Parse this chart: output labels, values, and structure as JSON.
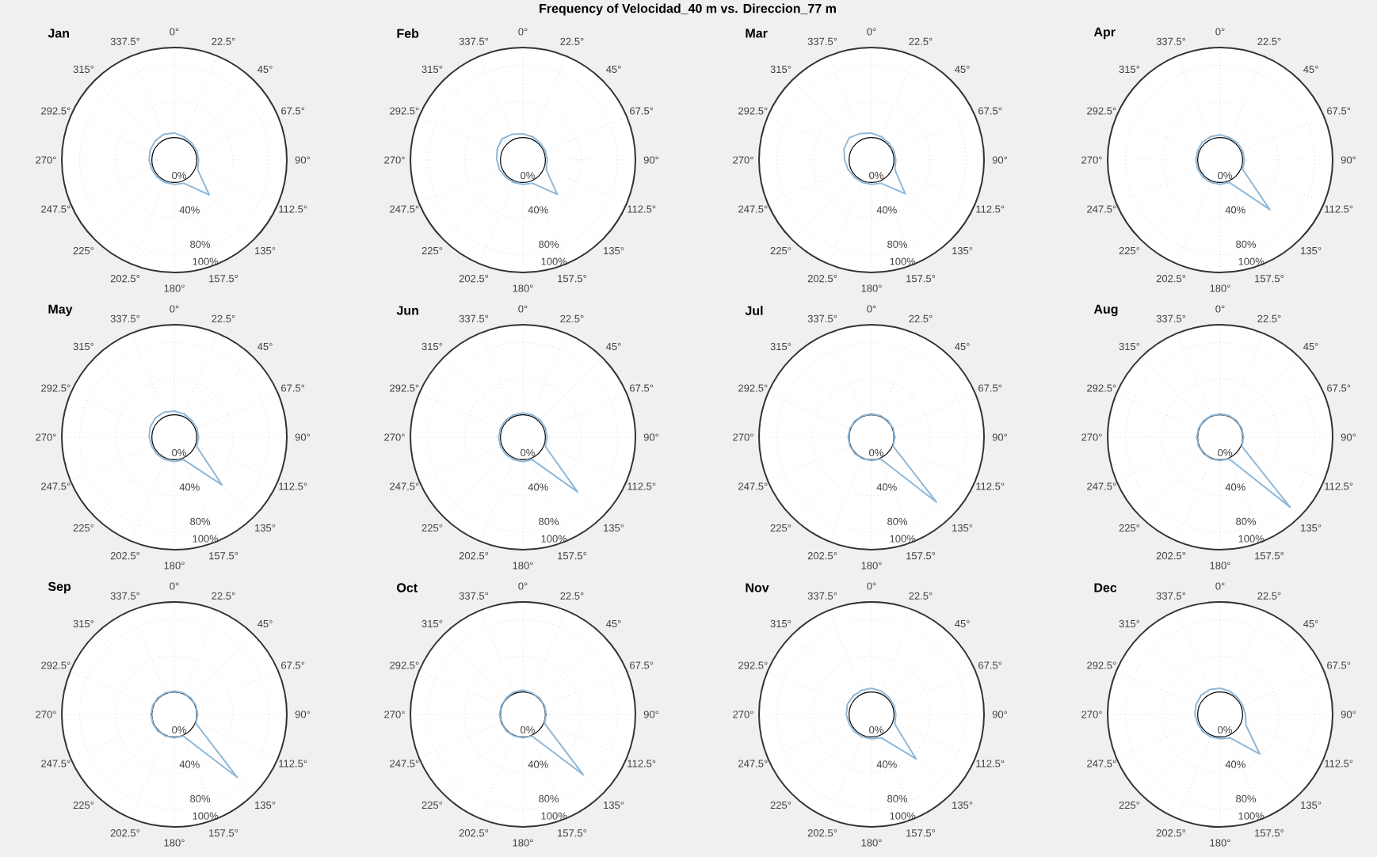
{
  "chart_data": [
    {
      "type": "radar",
      "title": "Jan",
      "annotations": [
        "Frequency of Velocidad_40 m vs. Direccion_77 m"
      ],
      "categories": [
        "0°",
        "22.5°",
        "45°",
        "67.5°",
        "90°",
        "112.5°",
        "135°",
        "157.5°",
        "180°",
        "202.5°",
        "225°",
        "247.5°",
        "270°",
        "292.5°",
        "315°",
        "337.5°"
      ],
      "series": [
        {
          "color": "#8fb8d8",
          "values": [
            5,
            3,
            2,
            2,
            2,
            3,
            30,
            3,
            2,
            2,
            2,
            2,
            3,
            4,
            5,
            6
          ]
        }
      ],
      "ylim": [
        -25,
        100
      ],
      "yticks": [
        {
          "value": 0,
          "label": "0%"
        },
        {
          "value": 40,
          "label": "40%"
        },
        {
          "value": 80,
          "label": "80%"
        },
        {
          "value": 100,
          "label": "100%"
        }
      ],
      "grid": true
    },
    {
      "type": "radar",
      "title": "Feb",
      "categories": [
        "0°",
        "22.5°",
        "45°",
        "67.5°",
        "90°",
        "112.5°",
        "135°",
        "157.5°",
        "180°",
        "202.5°",
        "225°",
        "247.5°",
        "270°",
        "292.5°",
        "315°",
        "337.5°"
      ],
      "series": [
        {
          "color": "#8fb8d8",
          "values": [
            4,
            3,
            2,
            2,
            2,
            3,
            29,
            3,
            2,
            2,
            2,
            3,
            4,
            6,
            8,
            6
          ]
        }
      ],
      "ylim": [
        -25,
        100
      ],
      "yticks": [
        {
          "value": 0,
          "label": "0%"
        },
        {
          "value": 40,
          "label": "40%"
        },
        {
          "value": 80,
          "label": "80%"
        },
        {
          "value": 100,
          "label": "100%"
        }
      ],
      "grid": true
    },
    {
      "type": "radar",
      "title": "Mar",
      "categories": [
        "0°",
        "22.5°",
        "45°",
        "67.5°",
        "90°",
        "112.5°",
        "135°",
        "157.5°",
        "180°",
        "202.5°",
        "225°",
        "247.5°",
        "270°",
        "292.5°",
        "315°",
        "337.5°"
      ],
      "series": [
        {
          "color": "#8fb8d8",
          "values": [
            5,
            3,
            2,
            2,
            2,
            3,
            28,
            3,
            2,
            2,
            2,
            3,
            5,
            8,
            10,
            7
          ]
        }
      ],
      "ylim": [
        -25,
        100
      ],
      "yticks": [
        {
          "value": 0,
          "label": "0%"
        },
        {
          "value": 40,
          "label": "40%"
        },
        {
          "value": 80,
          "label": "80%"
        },
        {
          "value": 100,
          "label": "100%"
        }
      ],
      "grid": true
    },
    {
      "type": "radar",
      "title": "Apr",
      "categories": [
        "0°",
        "22.5°",
        "45°",
        "67.5°",
        "90°",
        "112.5°",
        "135°",
        "157.5°",
        "180°",
        "202.5°",
        "225°",
        "247.5°",
        "270°",
        "292.5°",
        "315°",
        "337.5°"
      ],
      "series": [
        {
          "color": "#8fb8d8",
          "values": [
            3,
            2,
            2,
            2,
            2,
            2,
            53,
            2,
            2,
            2,
            2,
            2,
            2,
            2,
            3,
            3
          ]
        }
      ],
      "ylim": [
        -25,
        100
      ],
      "yticks": [
        {
          "value": 0,
          "label": "0%"
        },
        {
          "value": 40,
          "label": "40%"
        },
        {
          "value": 80,
          "label": "80%"
        },
        {
          "value": 100,
          "label": "100%"
        }
      ],
      "grid": true
    },
    {
      "type": "radar",
      "title": "May",
      "categories": [
        "0°",
        "22.5°",
        "45°",
        "67.5°",
        "90°",
        "112.5°",
        "135°",
        "157.5°",
        "180°",
        "202.5°",
        "225°",
        "247.5°",
        "270°",
        "292.5°",
        "315°",
        "337.5°"
      ],
      "series": [
        {
          "color": "#8fb8d8",
          "values": [
            4,
            3,
            2,
            2,
            2,
            2,
            50,
            2,
            2,
            2,
            2,
            2,
            3,
            4,
            5,
            5
          ]
        }
      ],
      "ylim": [
        -25,
        100
      ],
      "yticks": [
        {
          "value": 0,
          "label": "0%"
        },
        {
          "value": 40,
          "label": "40%"
        },
        {
          "value": 80,
          "label": "80%"
        },
        {
          "value": 100,
          "label": "100%"
        }
      ],
      "grid": true
    },
    {
      "type": "radar",
      "title": "Jun",
      "categories": [
        "0°",
        "22.5°",
        "45°",
        "67.5°",
        "90°",
        "112.5°",
        "135°",
        "157.5°",
        "180°",
        "202.5°",
        "225°",
        "247.5°",
        "270°",
        "292.5°",
        "315°",
        "337.5°"
      ],
      "series": [
        {
          "color": "#8fb8d8",
          "values": [
            2,
            2,
            2,
            2,
            2,
            2,
            61,
            2,
            2,
            2,
            2,
            2,
            2,
            2,
            2,
            2
          ]
        }
      ],
      "ylim": [
        -25,
        100
      ],
      "yticks": [
        {
          "value": 0,
          "label": "0%"
        },
        {
          "value": 40,
          "label": "40%"
        },
        {
          "value": 80,
          "label": "80%"
        },
        {
          "value": 100,
          "label": "100%"
        }
      ],
      "grid": true
    },
    {
      "type": "radar",
      "title": "Jul",
      "categories": [
        "0°",
        "22.5°",
        "45°",
        "67.5°",
        "90°",
        "112.5°",
        "135°",
        "157.5°",
        "180°",
        "202.5°",
        "225°",
        "247.5°",
        "270°",
        "292.5°",
        "315°",
        "337.5°"
      ],
      "series": [
        {
          "color": "#8fb8d8",
          "values": [
            1,
            1,
            1,
            1,
            1,
            1,
            77,
            1,
            1,
            1,
            1,
            1,
            1,
            1,
            1,
            1
          ]
        }
      ],
      "ylim": [
        -25,
        100
      ],
      "yticks": [
        {
          "value": 0,
          "label": "0%"
        },
        {
          "value": 40,
          "label": "40%"
        },
        {
          "value": 80,
          "label": "80%"
        },
        {
          "value": 100,
          "label": "100%"
        }
      ],
      "grid": true
    },
    {
      "type": "radar",
      "title": "Aug",
      "categories": [
        "0°",
        "22.5°",
        "45°",
        "67.5°",
        "90°",
        "112.5°",
        "135°",
        "157.5°",
        "180°",
        "202.5°",
        "225°",
        "247.5°",
        "270°",
        "292.5°",
        "315°",
        "337.5°"
      ],
      "series": [
        {
          "color": "#8fb8d8",
          "values": [
            1,
            1,
            1,
            1,
            1,
            1,
            85,
            1,
            1,
            1,
            1,
            1,
            1,
            1,
            1,
            1
          ]
        }
      ],
      "ylim": [
        -25,
        100
      ],
      "yticks": [
        {
          "value": 0,
          "label": "0%"
        },
        {
          "value": 40,
          "label": "40%"
        },
        {
          "value": 80,
          "label": "80%"
        },
        {
          "value": 100,
          "label": "100%"
        }
      ],
      "grid": true
    },
    {
      "type": "radar",
      "title": "Sep",
      "categories": [
        "0°",
        "22.5°",
        "45°",
        "67.5°",
        "90°",
        "112.5°",
        "135°",
        "157.5°",
        "180°",
        "202.5°",
        "225°",
        "247.5°",
        "270°",
        "292.5°",
        "315°",
        "337.5°"
      ],
      "series": [
        {
          "color": "#8fb8d8",
          "values": [
            1,
            1,
            1,
            1,
            1,
            1,
            74,
            1,
            1,
            1,
            1,
            1,
            1,
            1,
            1,
            1
          ]
        }
      ],
      "ylim": [
        -25,
        100
      ],
      "yticks": [
        {
          "value": 0,
          "label": "0%"
        },
        {
          "value": 40,
          "label": "40%"
        },
        {
          "value": 80,
          "label": "80%"
        },
        {
          "value": 100,
          "label": "100%"
        }
      ],
      "grid": true
    },
    {
      "type": "radar",
      "title": "Oct",
      "categories": [
        "0°",
        "22.5°",
        "45°",
        "67.5°",
        "90°",
        "112.5°",
        "135°",
        "157.5°",
        "180°",
        "202.5°",
        "225°",
        "247.5°",
        "270°",
        "292.5°",
        "315°",
        "337.5°"
      ],
      "series": [
        {
          "color": "#8fb8d8",
          "values": [
            2,
            1,
            1,
            1,
            1,
            1,
            70,
            1,
            1,
            1,
            1,
            1,
            1,
            1,
            1,
            2
          ]
        }
      ],
      "ylim": [
        -25,
        100
      ],
      "yticks": [
        {
          "value": 0,
          "label": "0%"
        },
        {
          "value": 40,
          "label": "40%"
        },
        {
          "value": 80,
          "label": "80%"
        },
        {
          "value": 100,
          "label": "100%"
        }
      ],
      "grid": true
    },
    {
      "type": "radar",
      "title": "Nov",
      "categories": [
        "0°",
        "22.5°",
        "45°",
        "67.5°",
        "90°",
        "112.5°",
        "135°",
        "157.5°",
        "180°",
        "202.5°",
        "225°",
        "247.5°",
        "270°",
        "292.5°",
        "315°",
        "337.5°"
      ],
      "series": [
        {
          "color": "#8fb8d8",
          "values": [
            4,
            3,
            2,
            2,
            2,
            3,
            45,
            3,
            2,
            2,
            2,
            2,
            3,
            4,
            4,
            4
          ]
        }
      ],
      "ylim": [
        -25,
        100
      ],
      "yticks": [
        {
          "value": 0,
          "label": "0%"
        },
        {
          "value": 40,
          "label": "40%"
        },
        {
          "value": 80,
          "label": "80%"
        },
        {
          "value": 100,
          "label": "100%"
        }
      ],
      "grid": true
    },
    {
      "type": "radar",
      "title": "Dec",
      "categories": [
        "0°",
        "22.5°",
        "45°",
        "67.5°",
        "90°",
        "112.5°",
        "135°",
        "157.5°",
        "180°",
        "202.5°",
        "225°",
        "247.5°",
        "270°",
        "292.5°",
        "315°",
        "337.5°"
      ],
      "series": [
        {
          "color": "#8fb8d8",
          "values": [
            4,
            3,
            2,
            2,
            3,
            6,
            37,
            3,
            2,
            2,
            2,
            2,
            3,
            4,
            5,
            5
          ]
        }
      ],
      "ylim": [
        -25,
        100
      ],
      "yticks": [
        {
          "value": 0,
          "label": "0%"
        },
        {
          "value": 40,
          "label": "40%"
        },
        {
          "value": 80,
          "label": "80%"
        },
        {
          "value": 100,
          "label": "100%"
        }
      ],
      "grid": true
    }
  ]
}
